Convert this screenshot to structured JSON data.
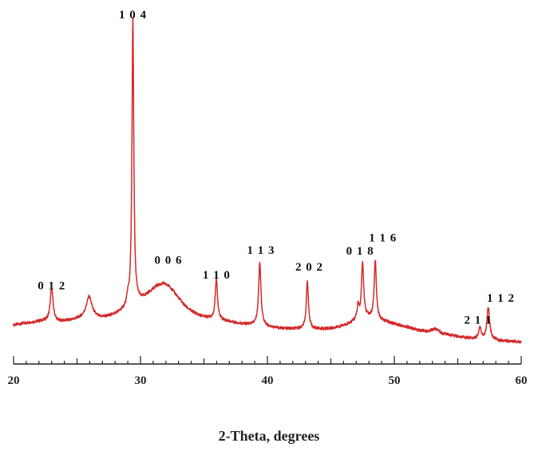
{
  "chart_data": {
    "type": "line",
    "title": "",
    "xlabel": "2-Theta, degrees",
    "ylabel": "",
    "xlim": [
      20,
      60
    ],
    "ylim": [
      0,
      100
    ],
    "grid": false,
    "x_ticks": [
      20,
      30,
      40,
      50,
      60
    ],
    "line_color": "#d42a2a",
    "baseline": [
      [
        20.0,
        5.6
      ],
      [
        21.0,
        6.2
      ],
      [
        22.0,
        6.7
      ],
      [
        22.6,
        6.9
      ],
      [
        23.0,
        7.1
      ],
      [
        23.5,
        6.6
      ],
      [
        24.5,
        7.0
      ],
      [
        25.3,
        7.6
      ],
      [
        26.0,
        8.0
      ],
      [
        26.8,
        7.7
      ],
      [
        27.5,
        8.2
      ],
      [
        28.3,
        9.4
      ],
      [
        28.9,
        10.6
      ],
      [
        29.6,
        12.4
      ],
      [
        30.2,
        13.7
      ],
      [
        30.8,
        15.9
      ],
      [
        31.3,
        17.6
      ],
      [
        31.8,
        18.3
      ],
      [
        32.3,
        17.4
      ],
      [
        32.9,
        14.4
      ],
      [
        33.5,
        11.5
      ],
      [
        34.0,
        9.9
      ],
      [
        34.7,
        8.5
      ],
      [
        35.3,
        7.9
      ],
      [
        36.0,
        7.6
      ],
      [
        36.7,
        6.9
      ],
      [
        37.5,
        6.3
      ],
      [
        38.3,
        5.8
      ],
      [
        39.0,
        5.6
      ],
      [
        39.7,
        5.3
      ],
      [
        40.5,
        4.8
      ],
      [
        41.3,
        4.5
      ],
      [
        42.0,
        4.4
      ],
      [
        42.7,
        4.5
      ],
      [
        43.5,
        4.4
      ],
      [
        44.5,
        4.4
      ],
      [
        45.3,
        4.7
      ],
      [
        46.0,
        5.4
      ],
      [
        46.6,
        6.3
      ],
      [
        47.0,
        7.3
      ],
      [
        47.6,
        8.0
      ],
      [
        48.2,
        7.7
      ],
      [
        48.8,
        7.0
      ],
      [
        49.3,
        6.6
      ],
      [
        50.0,
        6.0
      ],
      [
        51.0,
        5.0
      ],
      [
        52.0,
        3.9
      ],
      [
        52.7,
        3.7
      ],
      [
        53.2,
        4.6
      ],
      [
        53.8,
        3.0
      ],
      [
        54.5,
        2.4
      ],
      [
        55.3,
        1.9
      ],
      [
        56.2,
        1.5
      ],
      [
        57.0,
        1.4
      ],
      [
        57.6,
        1.4
      ],
      [
        58.3,
        0.8
      ],
      [
        59.0,
        0.6
      ],
      [
        60.0,
        0.4
      ]
    ],
    "peaks": [
      {
        "x": 23.0,
        "height": 9.9,
        "width": 0.13
      },
      {
        "x": 25.95,
        "height": 6.3,
        "width": 0.27
      },
      {
        "x": 29.4,
        "height": 87.8,
        "width": 0.085
      },
      {
        "x": 29.0,
        "height": 2.5,
        "width": 0.09
      },
      {
        "x": 35.98,
        "height": 12.4,
        "width": 0.1
      },
      {
        "x": 39.4,
        "height": 19.4,
        "width": 0.11
      },
      {
        "x": 43.15,
        "height": 14.6,
        "width": 0.1
      },
      {
        "x": 47.15,
        "height": 4.0,
        "width": 0.08
      },
      {
        "x": 47.5,
        "height": 16.8,
        "width": 0.1
      },
      {
        "x": 48.5,
        "height": 18.3,
        "width": 0.1
      },
      {
        "x": 56.75,
        "height": 3.6,
        "width": 0.1
      },
      {
        "x": 57.4,
        "height": 9.6,
        "width": 0.12
      }
    ],
    "annotations": [
      {
        "label": "0 1 2",
        "x": 23.0,
        "y": 16.5
      },
      {
        "label": "1 0 4",
        "x": 29.4,
        "y": 99.8
      },
      {
        "label": "0 0 6",
        "x": 32.2,
        "y": 24.4
      },
      {
        "label": "1 1 0",
        "x": 36.0,
        "y": 19.9
      },
      {
        "label": "1 1 3",
        "x": 39.5,
        "y": 27.5
      },
      {
        "label": "2 0 2",
        "x": 43.3,
        "y": 22.3
      },
      {
        "label": "0 1 8",
        "x": 47.3,
        "y": 27.2
      },
      {
        "label": "1 1 6",
        "x": 49.1,
        "y": 31.3
      },
      {
        "label": "2 1 1",
        "x": 56.6,
        "y": 6.0
      },
      {
        "label": "1 1 2",
        "x": 58.4,
        "y": 12.7
      }
    ]
  }
}
